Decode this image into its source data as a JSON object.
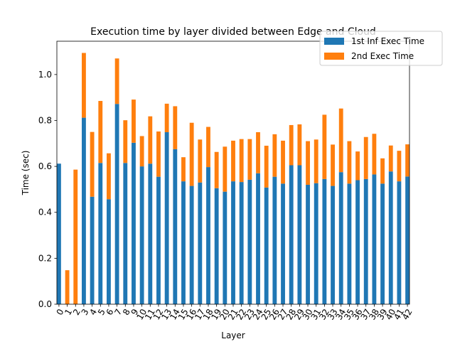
{
  "chart_data": {
    "type": "bar",
    "stacked": true,
    "title": "Execution time by layer divided between Edge and Cloud",
    "xlabel": "Layer",
    "ylabel": "Time (sec)",
    "ylim": [
      0,
      1.145
    ],
    "yticks": [
      0.0,
      0.2,
      0.4,
      0.6,
      0.8,
      1.0
    ],
    "grid": false,
    "legend_position": "top-right",
    "categories": [
      "0",
      "1",
      "2",
      "3",
      "4",
      "5",
      "6",
      "7",
      "8",
      "9",
      "10",
      "11",
      "12",
      "13",
      "14",
      "15",
      "16",
      "17",
      "18",
      "19",
      "20",
      "21",
      "22",
      "23",
      "24",
      "25",
      "26",
      "27",
      "28",
      "29",
      "30",
      "31",
      "32",
      "33",
      "34",
      "35",
      "36",
      "37",
      "38",
      "39",
      "40",
      "41",
      "42"
    ],
    "series": [
      {
        "name": "1st Inf Exec Time",
        "color": "#1f77b4",
        "values": [
          0.612,
          0.0,
          0.0,
          0.812,
          0.468,
          0.615,
          0.457,
          0.872,
          0.615,
          0.703,
          0.6,
          0.612,
          0.555,
          0.749,
          0.675,
          0.535,
          0.515,
          0.53,
          0.597,
          0.505,
          0.49,
          0.535,
          0.532,
          0.542,
          0.57,
          0.508,
          0.555,
          0.525,
          0.605,
          0.605,
          0.52,
          0.527,
          0.545,
          0.515,
          0.575,
          0.525,
          0.54,
          0.545,
          0.565,
          0.525,
          0.578,
          0.535,
          0.556
        ]
      },
      {
        "name": "2nd Exec Time",
        "color": "#ff7f0e",
        "values": [
          0.0,
          0.148,
          0.586,
          0.282,
          0.282,
          0.27,
          0.2,
          0.198,
          0.186,
          0.188,
          0.132,
          0.206,
          0.197,
          0.124,
          0.187,
          0.105,
          0.275,
          0.187,
          0.175,
          0.158,
          0.196,
          0.177,
          0.187,
          0.177,
          0.179,
          0.182,
          0.185,
          0.187,
          0.175,
          0.178,
          0.19,
          0.19,
          0.28,
          0.18,
          0.277,
          0.185,
          0.125,
          0.183,
          0.177,
          0.11,
          0.113,
          0.133,
          0.14
        ]
      }
    ]
  }
}
